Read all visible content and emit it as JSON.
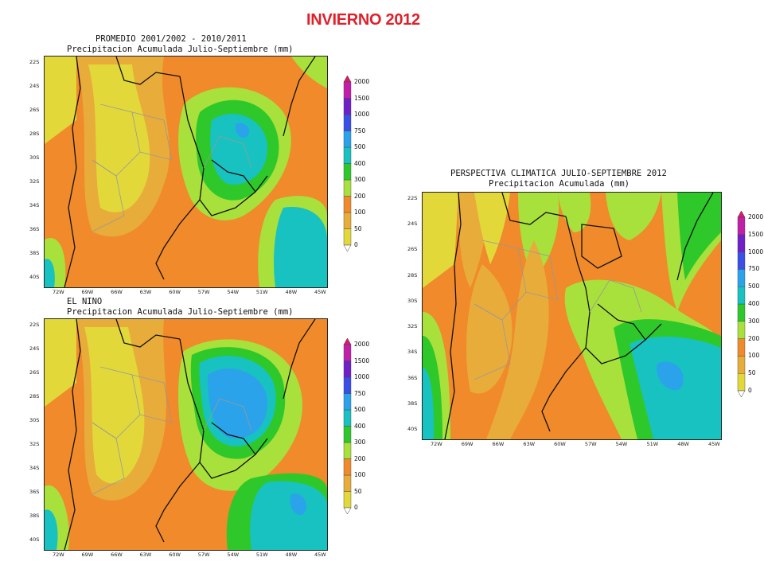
{
  "main_title": "INVIERNO 2012",
  "palette": {
    "c0_50": "#e2d83a",
    "c50_100": "#e8ac3a",
    "c100_200": "#f08a2a",
    "c200_300": "#a8e03c",
    "c300_400": "#2fc82a",
    "c400_500": "#18c2c0",
    "c500_750": "#2aa3ea",
    "c750_1000": "#3a4fe8",
    "c1000_1500": "#7020c8",
    "c1500_2000": "#c020a8",
    "c2000": "#e01868"
  },
  "colorbar_levels": [
    "0",
    "50",
    "100",
    "200",
    "300",
    "400",
    "500",
    "750",
    "1000",
    "1500",
    "2000"
  ],
  "y_ticks": [
    "22S",
    "24S",
    "26S",
    "28S",
    "30S",
    "32S",
    "34S",
    "36S",
    "38S",
    "40S"
  ],
  "x_ticks": [
    "72W",
    "69W",
    "66W",
    "63W",
    "60W",
    "57W",
    "54W",
    "51W",
    "48W",
    "45W"
  ],
  "maps": [
    {
      "id": "promedio",
      "title_line1": "PROMEDIO 2001/2002 - 2010/2011",
      "title_line2": "Precipitacion Acumulada Julio-Septiembre (mm)"
    },
    {
      "id": "el-nino",
      "title_line1": "EL NINO",
      "title_line2": "Precipitacion Acumulada Julio-Septiembre (mm)"
    },
    {
      "id": "perspectiva",
      "title_line1": "PERSPECTIVA CLIMATICA JULIO-SEPTIEMBRE 2012",
      "title_line2": "Precipitacion Acumulada (mm)"
    }
  ]
}
